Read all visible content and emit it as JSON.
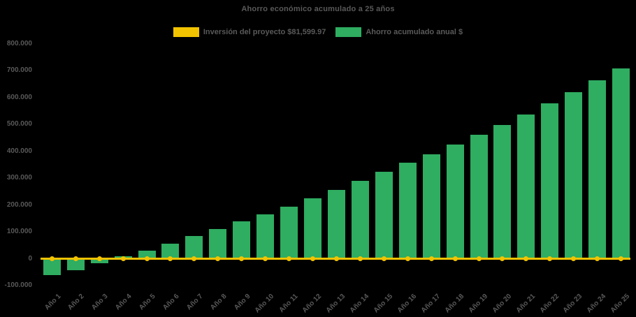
{
  "title": "Ahorro económico acumulado a 25 años",
  "colors": {
    "background": "#000000",
    "text": "#595959",
    "bar_green": "#2FAD61",
    "line_gold": "#F2C300"
  },
  "legend": {
    "items": [
      {
        "label": "Inversión del proyecto $81,599.97",
        "color": "#F2C300",
        "marker": "line"
      },
      {
        "label": "Ahorro acumulado anual $",
        "color": "#2FAD61",
        "marker": "bar"
      }
    ]
  },
  "chart_data": {
    "type": "bar",
    "title": "Ahorro económico acumulado a 25 años",
    "categories": [
      "Año 1",
      "Año 2",
      "Año 3",
      "Año 4",
      "Año 5",
      "Año 6",
      "Año 7",
      "Año 8",
      "Año 9",
      "Año 10",
      "Año 11",
      "Año 12",
      "Año 13",
      "Año 14",
      "Año 15",
      "Año 16",
      "Año 17",
      "Año 18",
      "Año 19",
      "Año 20",
      "Año 21",
      "Año 22",
      "Año 23",
      "Año 24",
      "Año 25"
    ],
    "series": [
      {
        "name": "Ahorro acumulado anual $",
        "type": "bar",
        "color": "#2FAD61",
        "values": [
          -62000,
          -42000,
          -17000,
          9000,
          30000,
          57000,
          84000,
          110000,
          138000,
          166000,
          195000,
          225000,
          255000,
          289000,
          323000,
          357000,
          390000,
          426000,
          462000,
          499000,
          538000,
          578000,
          620000,
          664000,
          708000
        ]
      },
      {
        "name": "Inversión del proyecto $81,599.97",
        "type": "line",
        "color": "#F2C300",
        "marker": "circle",
        "values": [
          0,
          0,
          0,
          0,
          0,
          0,
          0,
          0,
          0,
          0,
          0,
          0,
          0,
          0,
          0,
          0,
          0,
          0,
          0,
          0,
          0,
          0,
          0,
          0,
          0
        ]
      }
    ],
    "xlabel": "",
    "ylabel": "",
    "ylim": [
      -100000,
      800000
    ],
    "ytick_step": 100000,
    "ytick_labels": [
      "-100.000",
      "0",
      "100.000",
      "200.000",
      "300.000",
      "400.000",
      "500.000",
      "600.000",
      "700.000",
      "800.000"
    ],
    "grid": false,
    "legend_position": "top-center",
    "number_format": "thousands separated by dots (es)"
  }
}
